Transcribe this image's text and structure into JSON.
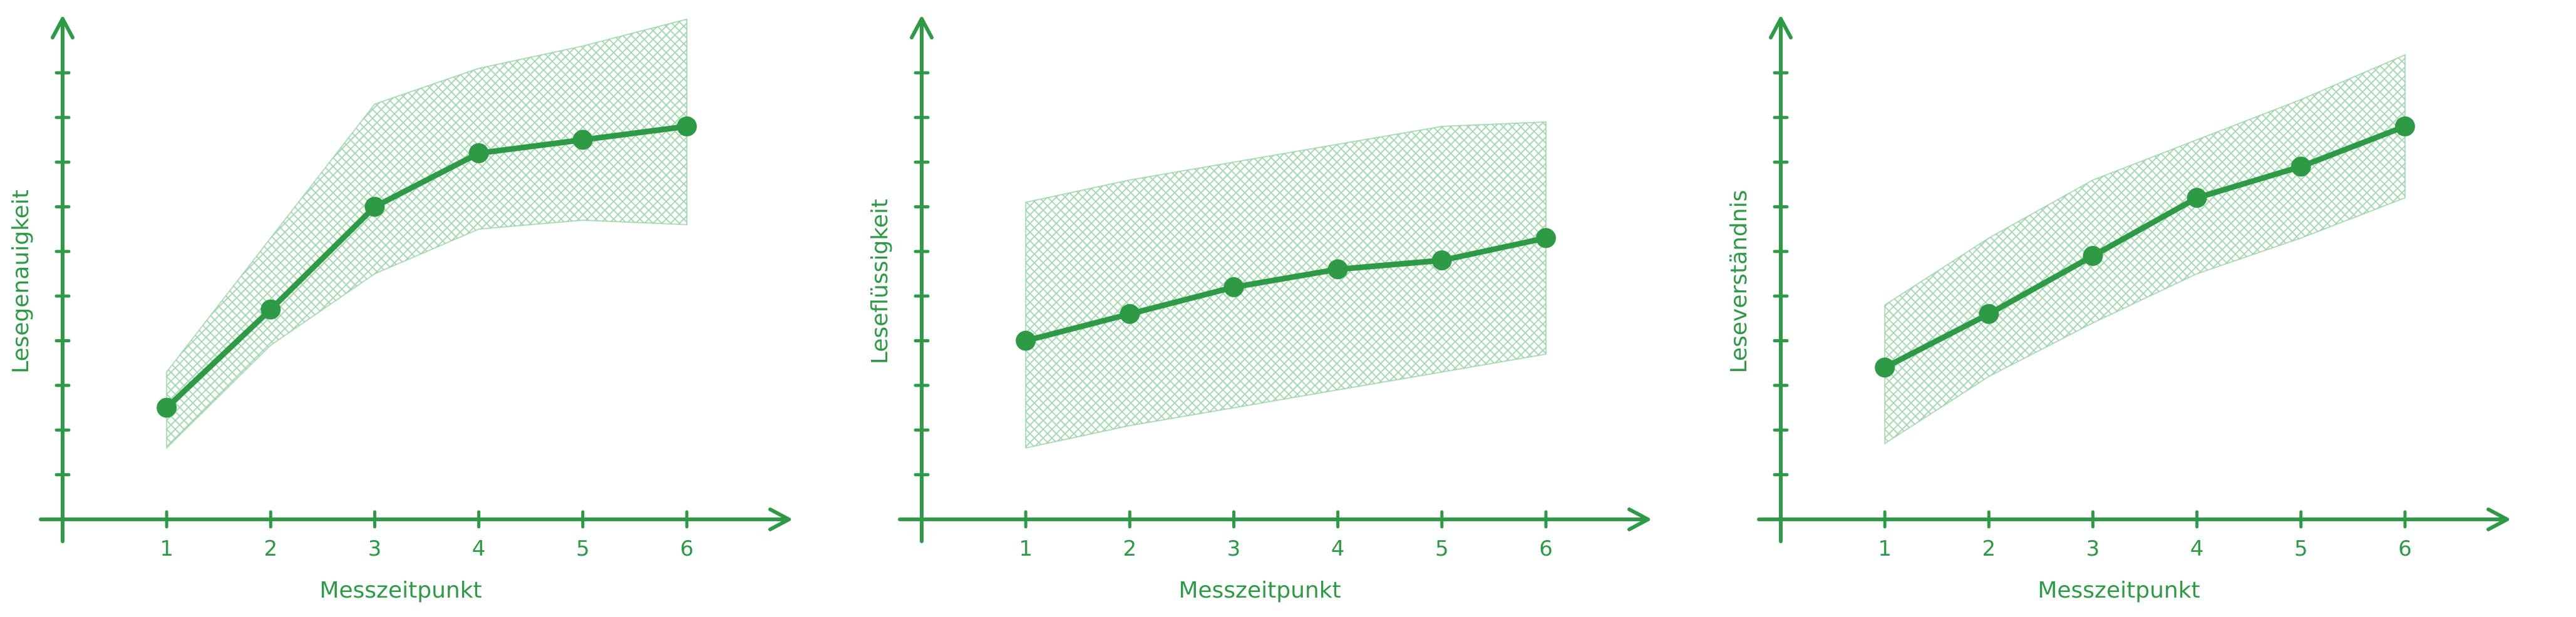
{
  "colors": {
    "accent": "#2e9a45",
    "band": "#8fd09d"
  },
  "chart_data": [
    {
      "type": "line",
      "xlabel": "Messzeitpunkt",
      "ylabel": "Lesegenauigkeit",
      "x": [
        1,
        2,
        3,
        4,
        5,
        6
      ],
      "x_tick_labels": [
        "1",
        "2",
        "3",
        "4",
        "5",
        "6"
      ],
      "xlim": [
        0,
        6.5
      ],
      "ylim": [
        0,
        11
      ],
      "y_ticks": [
        1,
        2,
        3,
        4,
        5,
        6,
        7,
        8,
        9,
        10
      ],
      "series": [
        {
          "values": [
            2.5,
            4.7,
            7.0,
            8.2,
            8.5,
            8.8
          ],
          "lower": [
            1.6,
            3.9,
            5.5,
            6.5,
            6.7,
            6.6
          ],
          "upper": [
            3.3,
            6.3,
            9.3,
            10.1,
            10.6,
            11.2
          ]
        }
      ],
      "grid": false,
      "legend": "none"
    },
    {
      "type": "line",
      "xlabel": "Messzeitpunkt",
      "ylabel": "Leseflüssigkeit",
      "x": [
        1,
        2,
        3,
        4,
        5,
        6
      ],
      "x_tick_labels": [
        "1",
        "2",
        "3",
        "4",
        "5",
        "6"
      ],
      "xlim": [
        0,
        6.5
      ],
      "ylim": [
        0,
        11
      ],
      "y_ticks": [
        1,
        2,
        3,
        4,
        5,
        6,
        7,
        8,
        9,
        10
      ],
      "series": [
        {
          "values": [
            4.0,
            4.6,
            5.2,
            5.6,
            5.8,
            6.3
          ],
          "lower": [
            1.6,
            2.1,
            2.5,
            2.9,
            3.3,
            3.7
          ],
          "upper": [
            7.1,
            7.6,
            8.0,
            8.4,
            8.8,
            8.9
          ]
        }
      ],
      "grid": false,
      "legend": "none"
    },
    {
      "type": "line",
      "xlabel": "Messzeitpunkt",
      "ylabel": "Leseverständnis",
      "x": [
        1,
        2,
        3,
        4,
        5,
        6
      ],
      "x_tick_labels": [
        "1",
        "2",
        "3",
        "4",
        "5",
        "6"
      ],
      "xlim": [
        0,
        6.5
      ],
      "ylim": [
        0,
        11
      ],
      "y_ticks": [
        1,
        2,
        3,
        4,
        5,
        6,
        7,
        8,
        9,
        10
      ],
      "series": [
        {
          "values": [
            3.4,
            4.6,
            5.9,
            7.2,
            7.9,
            8.8
          ],
          "lower": [
            1.7,
            3.2,
            4.4,
            5.5,
            6.3,
            7.2
          ],
          "upper": [
            4.8,
            6.3,
            7.6,
            8.5,
            9.4,
            10.4
          ]
        }
      ],
      "grid": false,
      "legend": "none"
    }
  ]
}
